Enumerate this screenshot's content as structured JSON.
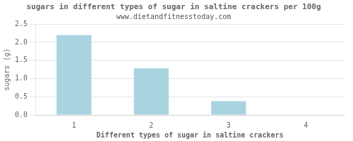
{
  "chart_data": {
    "type": "bar",
    "title": "sugars in different types of sugar in saltine crackers per 100g",
    "subtitle": "www.dietandfitnesstoday.com",
    "x_label": "Different types of sugar in saltine crackers",
    "y_label": "sugars (g)",
    "categories": [
      "1",
      "2",
      "3",
      "4"
    ],
    "values": [
      2.2,
      1.28,
      0.38,
      0.0
    ],
    "color": "#a8d4e0",
    "ylim": [
      0,
      2.5
    ],
    "yticks": [
      {
        "value": 0,
        "label": "0.0"
      },
      0.5,
      {
        "value": 1,
        "label": "1.0"
      },
      1.5,
      {
        "value": 2,
        "label": "2.0"
      },
      2.5
    ],
    "grid": true
  }
}
